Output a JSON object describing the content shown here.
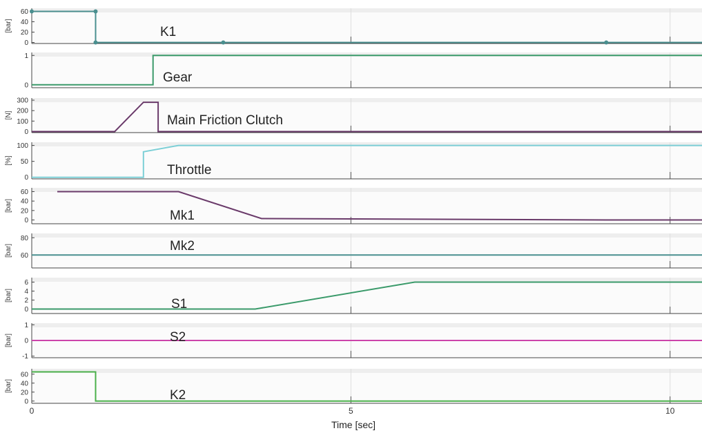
{
  "chart_data": {
    "type": "line",
    "title": "",
    "xlabel": "Time [sec]",
    "xlim": [
      0,
      10.5
    ],
    "xticks": [
      0,
      5,
      10
    ],
    "xtick_labels": [
      "0",
      "5",
      "10"
    ],
    "grid": true,
    "panels": [
      {
        "name": "K1",
        "unit": "[bar]",
        "ylim": [
          -2,
          66
        ],
        "yticks": [
          0,
          20,
          40,
          60
        ],
        "ytick_labels": [
          "0",
          "20",
          "40",
          "60"
        ],
        "color": "#4a8f8f",
        "x": [
          0,
          1,
          1,
          10.5
        ],
        "y": [
          60,
          60,
          0,
          0
        ],
        "markers": [
          [
            0,
            60
          ],
          [
            1,
            60
          ],
          [
            1,
            0
          ],
          [
            3,
            0
          ],
          [
            9,
            0
          ]
        ]
      },
      {
        "name": "Gear",
        "unit": "",
        "ylim": [
          -0.1,
          1.1
        ],
        "yticks": [
          0,
          1
        ],
        "ytick_labels": [
          "0",
          "1"
        ],
        "color": "#3a9a6a",
        "x": [
          0,
          1.9,
          1.9,
          10.5
        ],
        "y": [
          0,
          0,
          1,
          1
        ]
      },
      {
        "name": "Main Friction Clutch",
        "unit": "[N]",
        "ylim": [
          -10,
          320
        ],
        "yticks": [
          0,
          100,
          200,
          300
        ],
        "ytick_labels": [
          "0",
          "100",
          "200",
          "300"
        ],
        "color": "#6a3a6a",
        "x": [
          0,
          1.3,
          1.75,
          1.98,
          1.98,
          10.5
        ],
        "y": [
          0,
          0,
          280,
          280,
          0,
          0
        ]
      },
      {
        "name": "Throttle",
        "unit": "[%]",
        "ylim": [
          -5,
          110
        ],
        "yticks": [
          0,
          50,
          100
        ],
        "ytick_labels": [
          "0",
          "50",
          "100"
        ],
        "color": "#7ccfd6",
        "x": [
          0,
          1.75,
          1.75,
          2.3,
          10.5
        ],
        "y": [
          0,
          0,
          80,
          100,
          100
        ]
      },
      {
        "name": "Mk1",
        "unit": "[bar]",
        "ylim": [
          -8,
          68
        ],
        "yticks": [
          0,
          20,
          40,
          60
        ],
        "ytick_labels": [
          "0",
          "20",
          "40",
          "60"
        ],
        "color": "#6a3a6a",
        "x": [
          0.4,
          2.3,
          3.6,
          9,
          10.5
        ],
        "y": [
          60,
          60,
          3,
          0,
          0
        ]
      },
      {
        "name": "Mk2",
        "unit": "[bar]",
        "ylim": [
          45,
          85
        ],
        "yticks": [
          60,
          80
        ],
        "ytick_labels": [
          "60",
          "80"
        ],
        "color": "#4a8f8f",
        "x": [
          0,
          10.5
        ],
        "y": [
          60,
          60
        ]
      },
      {
        "name": "S1",
        "unit": "[bar]",
        "ylim": [
          -1,
          7
        ],
        "yticks": [
          0,
          2,
          4,
          6
        ],
        "ytick_labels": [
          "0",
          "2",
          "4",
          "6"
        ],
        "color": "#3a9a6a",
        "x": [
          0,
          3.5,
          6,
          10.5
        ],
        "y": [
          0,
          0,
          6,
          6
        ]
      },
      {
        "name": "S2",
        "unit": "[bar]",
        "ylim": [
          -1.1,
          1.1
        ],
        "yticks": [
          -1,
          0,
          1
        ],
        "ytick_labels": [
          "-1",
          "0",
          "1"
        ],
        "color": "#cc44aa",
        "x": [
          0,
          10.5
        ],
        "y": [
          0,
          0
        ]
      },
      {
        "name": "K2",
        "unit": "[bar]",
        "ylim": [
          -5,
          72
        ],
        "yticks": [
          0,
          20,
          40,
          60
        ],
        "ytick_labels": [
          "0",
          "20",
          "40",
          "60"
        ],
        "color": "#4ab04a",
        "x": [
          0,
          1,
          1,
          10.5
        ],
        "y": [
          65,
          65,
          0,
          0
        ]
      }
    ]
  }
}
